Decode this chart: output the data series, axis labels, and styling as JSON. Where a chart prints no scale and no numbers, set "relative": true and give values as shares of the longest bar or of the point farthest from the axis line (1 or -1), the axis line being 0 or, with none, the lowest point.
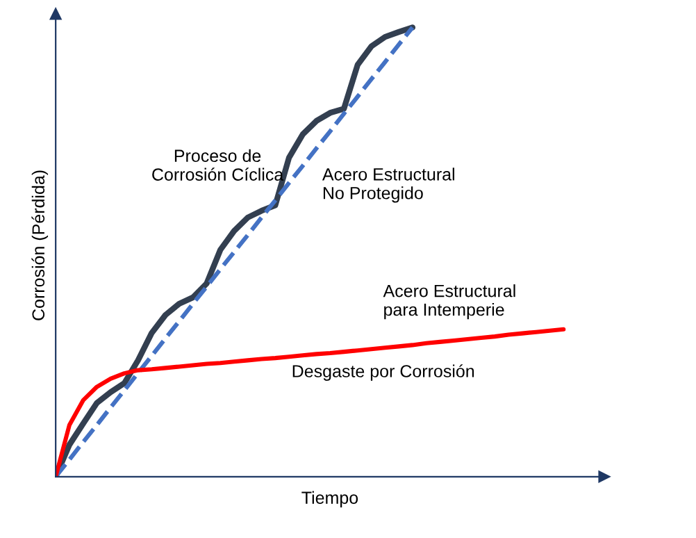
{
  "chart_data": {
    "type": "line",
    "relative": true,
    "xlabel": "Tiempo",
    "ylabel": "Corrosión (Pérdida)",
    "categories": [
      null,
      null,
      null,
      null,
      null,
      null,
      null,
      null,
      null,
      null,
      null,
      null,
      null,
      null,
      null,
      null,
      null,
      null,
      null,
      null,
      null,
      null,
      null,
      null,
      null,
      null,
      null,
      null,
      null,
      null,
      null,
      null,
      null,
      null,
      null,
      null,
      null,
      null
    ],
    "series": [
      {
        "color": "#333f50",
        "values": [
          0,
          0.071,
          0.118,
          0.164,
          0.188,
          0.208,
          0.259,
          0.32,
          0.36,
          0.385,
          0.399,
          0.43,
          0.505,
          0.547,
          0.577,
          0.592,
          0.604,
          0.71,
          0.762,
          0.792,
          0.81,
          0.819,
          0.917,
          0.958,
          0.979,
          0.99,
          1.0,
          null,
          null,
          null,
          null,
          null,
          null,
          null,
          null,
          null,
          null,
          null
        ]
      },
      {
        "color": "#4472c4",
        "line_style": "dashed",
        "values": [
          0,
          0.038,
          0.077,
          0.115,
          0.154,
          0.192,
          0.231,
          0.269,
          0.308,
          0.346,
          0.385,
          0.423,
          0.462,
          0.5,
          0.538,
          0.577,
          0.615,
          0.654,
          0.692,
          0.731,
          0.769,
          0.808,
          0.846,
          0.885,
          0.923,
          0.962,
          1.0,
          null,
          null,
          null,
          null,
          null,
          null,
          null,
          null,
          null,
          null,
          null
        ]
      },
      {
        "color": "#ff0000",
        "values": [
          0,
          0.115,
          0.17,
          0.2,
          0.218,
          0.23,
          0.237,
          0.239,
          0.242,
          0.245,
          0.248,
          0.251,
          0.253,
          0.256,
          0.259,
          0.262,
          0.264,
          0.267,
          0.27,
          0.273,
          0.275,
          0.278,
          0.281,
          0.284,
          0.287,
          0.29,
          0.293,
          0.297,
          0.3,
          0.303,
          0.306,
          0.309,
          0.312,
          0.316,
          0.319,
          0.322,
          0.325,
          0.328
        ]
      }
    ],
    "annotations": [
      "Proceso de\nCorrosión Cíclica",
      "Acero Estructural\nNo Protegido",
      "Acero Estructural\npara Intemperie",
      "Desgaste por Corrosión"
    ]
  }
}
